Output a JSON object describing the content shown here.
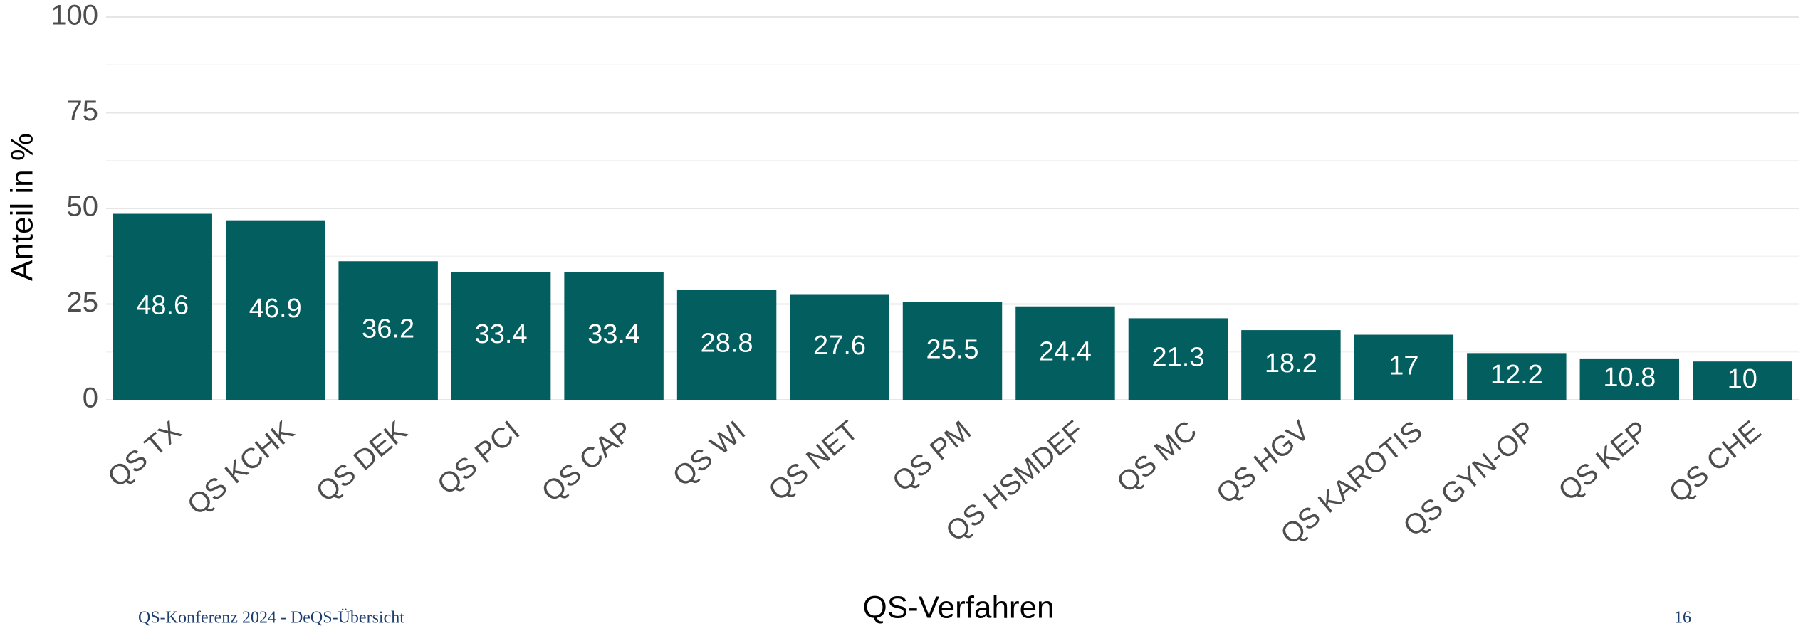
{
  "chart_data": {
    "type": "bar",
    "x_label": "QS-Verfahren",
    "y_label": "Anteil in %",
    "categories": [
      "QS TX",
      "QS KCHK",
      "QS DEK",
      "QS PCI",
      "QS CAP",
      "QS WI",
      "QS NET",
      "QS PM",
      "QS HSMDEF",
      "QS MC",
      "QS HGV",
      "QS KAROTIS",
      "QS GYN-OP",
      "QS KEP",
      "QS CHE"
    ],
    "values": [
      48.6,
      46.9,
      36.2,
      33.4,
      33.4,
      28.8,
      27.6,
      25.5,
      24.4,
      21.3,
      18.2,
      17,
      12.2,
      10.8,
      10
    ],
    "color": "#035e5f",
    "ylim": [
      0,
      100
    ],
    "yticks": [
      0,
      25,
      50,
      75,
      100
    ],
    "grid": true
  },
  "footer": "QS-Konferenz 2024 - DeQS-Übersicht",
  "page_number": "16"
}
